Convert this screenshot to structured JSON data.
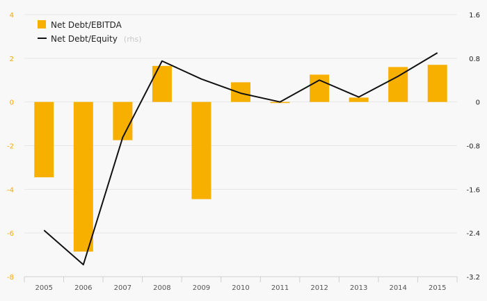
{
  "chart_data": {
    "type": "bar",
    "categories": [
      "2005",
      "2006",
      "2007",
      "2008",
      "2009",
      "2010",
      "2011",
      "2012",
      "2013",
      "2014",
      "2015"
    ],
    "series": [
      {
        "name": "Net Debt/EBITDA",
        "kind": "bar",
        "axis": "left",
        "color": "#f7b000",
        "values": [
          -3.45,
          -6.85,
          -1.75,
          1.65,
          -4.45,
          0.9,
          -0.05,
          1.25,
          0.2,
          1.6,
          1.7
        ]
      },
      {
        "name": "Net Debt/Equity",
        "kind": "line",
        "axis": "right",
        "color": "#111111",
        "values": [
          -2.35,
          -2.98,
          -0.65,
          0.75,
          0.42,
          0.16,
          0.0,
          0.4,
          0.09,
          0.47,
          0.9
        ]
      }
    ],
    "legend": {
      "bar_label": "Net Debt/EBITDA",
      "line_label": "Net Debt/Equity",
      "line_suffix": "(rhs)",
      "position": "top-left"
    },
    "yaxis_left": {
      "min": -8,
      "max": 4,
      "ticks": [
        "4",
        "2",
        "0",
        "-2",
        "-4",
        "-6",
        "-8"
      ]
    },
    "yaxis_right": {
      "min": -3.2,
      "max": 1.6,
      "ticks": [
        "1.6",
        "0.8",
        "0",
        "-0.8",
        "-1.6",
        "-2.4",
        "-3.2"
      ]
    },
    "grid": true
  }
}
